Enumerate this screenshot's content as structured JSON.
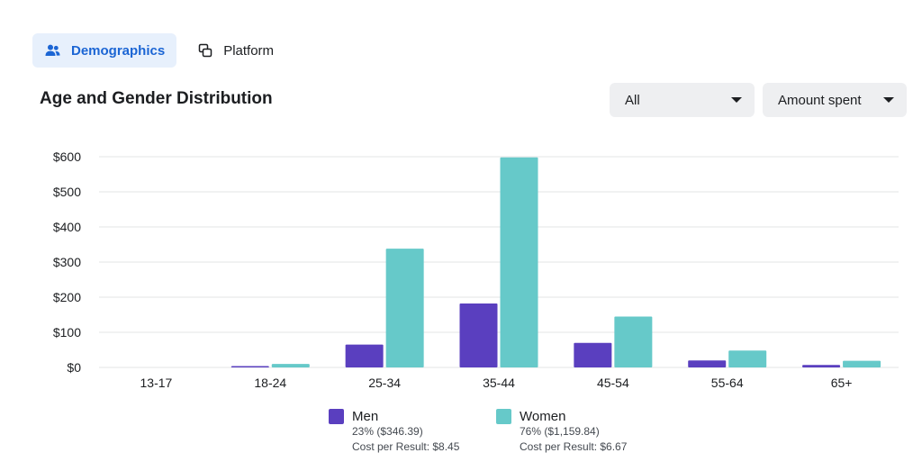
{
  "tabs": [
    {
      "label": "Demographics",
      "icon": "people-icon",
      "active": true
    },
    {
      "label": "Platform",
      "icon": "copy-icon",
      "active": false
    }
  ],
  "section_title": "Age and Gender Distribution",
  "filters": {
    "audience": "All",
    "metric": "Amount spent"
  },
  "colors": {
    "men": "#5a3fbf",
    "women": "#66c9c9",
    "accent": "#1b65d4",
    "grid": "#e3e4e6"
  },
  "chart_data": {
    "type": "bar",
    "categories": [
      "13-17",
      "18-24",
      "25-34",
      "35-44",
      "45-54",
      "55-64",
      "65+"
    ],
    "series": [
      {
        "name": "Men",
        "values": [
          0,
          4,
          65,
          182,
          70,
          20,
          7
        ]
      },
      {
        "name": "Women",
        "values": [
          0,
          10,
          338,
          598,
          145,
          48,
          19
        ]
      }
    ],
    "y_ticks": [
      "$0",
      "$100",
      "$200",
      "$300",
      "$400",
      "$500",
      "$600"
    ],
    "ylim": [
      0,
      600
    ],
    "grid": true,
    "legend_position": "bottom"
  },
  "legend": [
    {
      "name": "Men",
      "share": "23% ($346.39)",
      "cost": "Cost per Result: $8.45"
    },
    {
      "name": "Women",
      "share": "76% ($1,159.84)",
      "cost": "Cost per Result: $6.67"
    }
  ]
}
